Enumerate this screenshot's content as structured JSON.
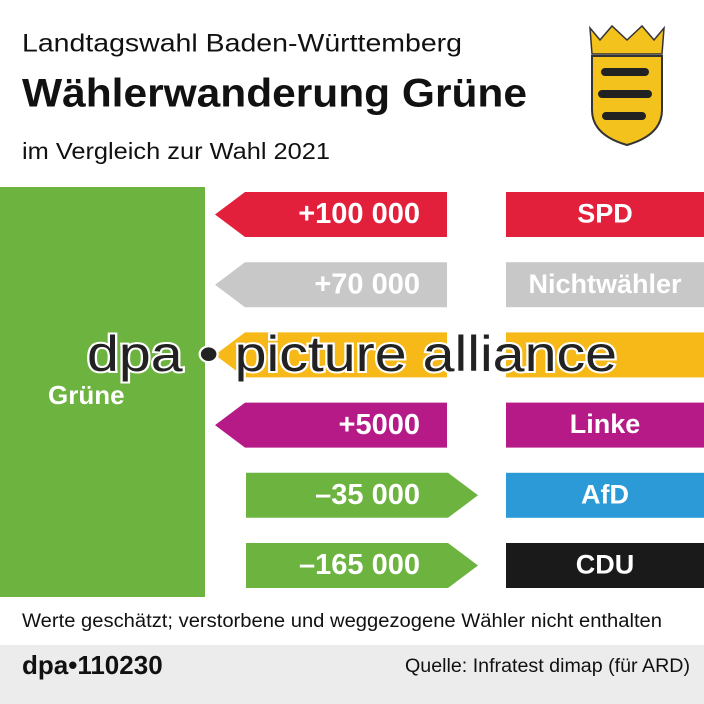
{
  "chart_data": {
    "type": "flow",
    "heading": "Landtagswahl Baden-Württemberg",
    "title": "Wählerwanderung Grüne",
    "subtitle": "im Vergleich zur Wahl 2021",
    "target": "Grüne",
    "target_color": "#6db33f",
    "categories": [
      "SPD",
      "Nichtwähler",
      null,
      "Linke",
      "AfD",
      "CDU"
    ],
    "values": [
      100000,
      70000,
      null,
      5000,
      -35000,
      -165000
    ],
    "value_labels": [
      "+100 000",
      "+70 000",
      null,
      "+5000",
      "–35 000",
      "–165 000"
    ],
    "colors": [
      "#e3203c",
      "#c8c8c8",
      "#f7b918",
      "#b51a86",
      "#2b9ad7",
      "#1a1a1a"
    ],
    "note": "Werte geschätzt; verstorbene und weggezogene Wähler nicht enthalten",
    "id": "dpa•110230",
    "source": "Quelle: Infratest dimap (für ARD)",
    "watermark": "dpa • picture alliance"
  }
}
